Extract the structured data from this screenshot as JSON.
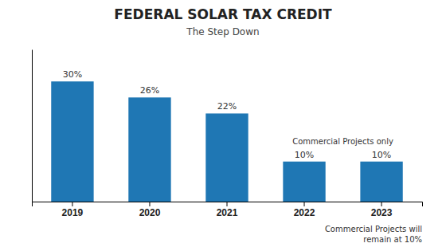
{
  "chart_data": {
    "type": "bar",
    "title": "FEDERAL SOLAR TAX CREDIT",
    "subtitle": "The Step Down",
    "categories": [
      "2019",
      "2020",
      "2021",
      "2022",
      "2023"
    ],
    "values": [
      30,
      26,
      22,
      10,
      10
    ],
    "value_labels": [
      "30%",
      "26%",
      "22%",
      "10%",
      "10%"
    ],
    "data_labels": true,
    "ylim": [
      0,
      38
    ],
    "tick_labels": "x",
    "annotations": [
      "Commercial Projects only",
      "Commercial Projects will\nremain at 10%"
    ]
  }
}
